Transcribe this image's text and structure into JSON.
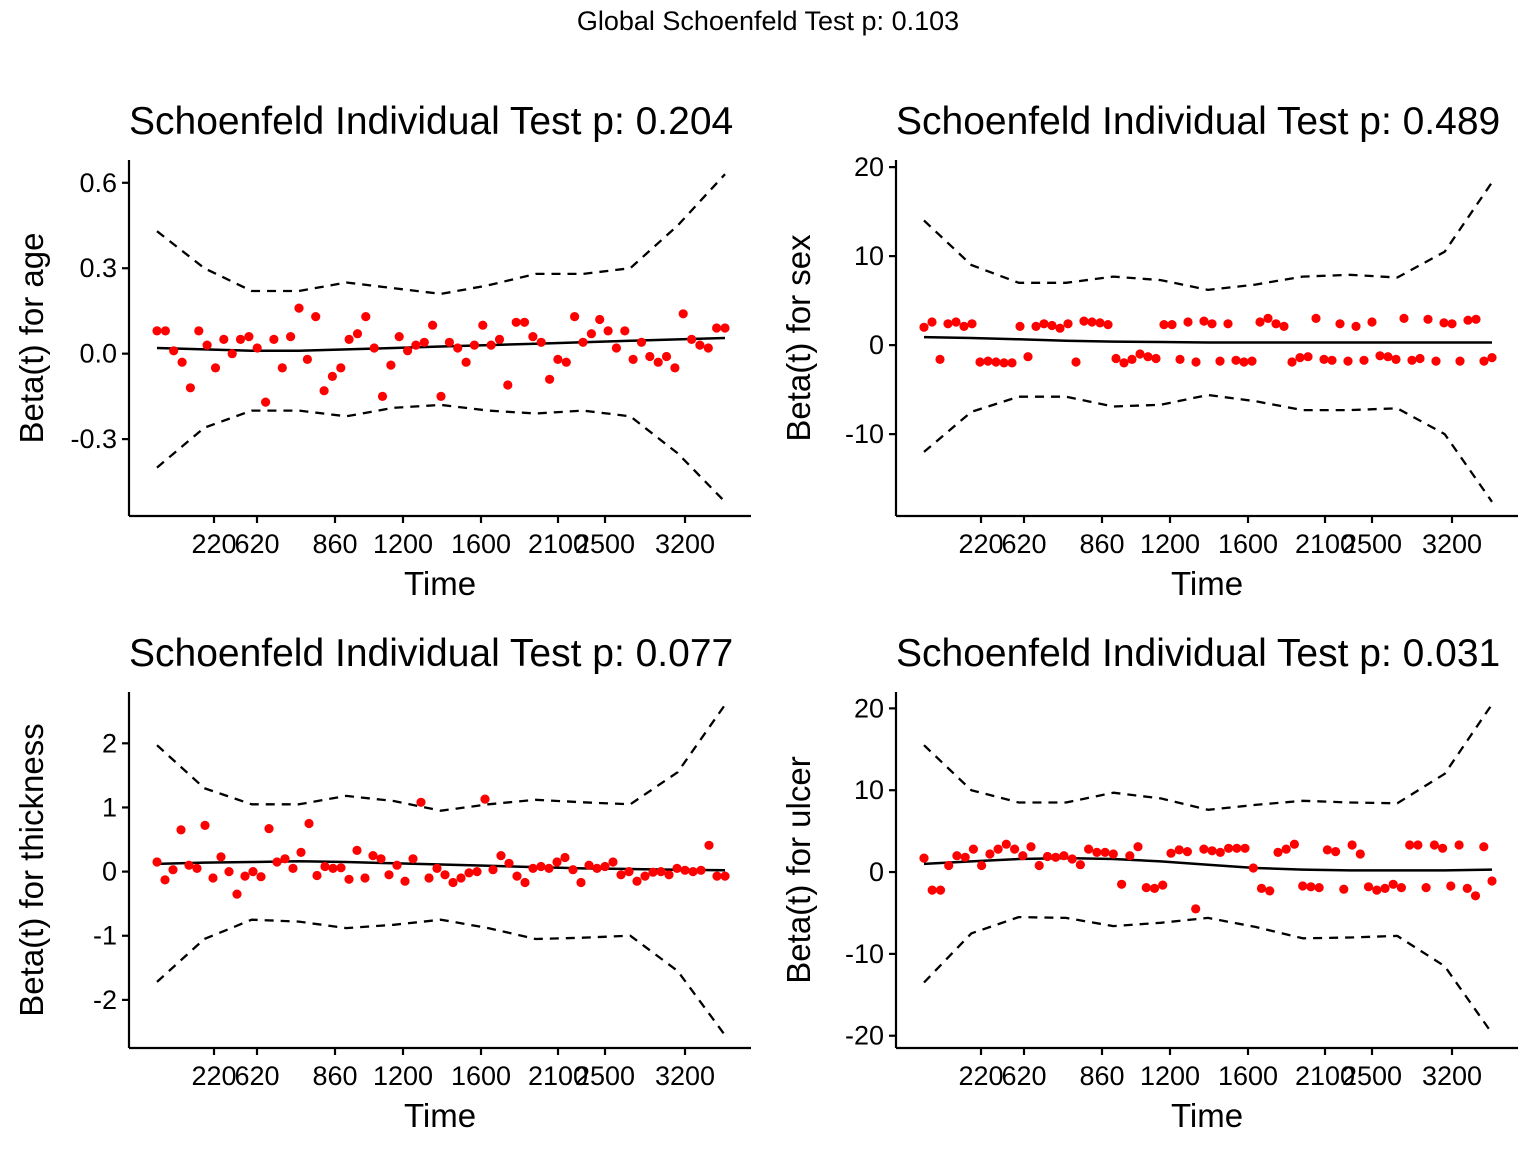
{
  "global_title": "Global Schoenfeld Test p: 0.103",
  "colors": {
    "points": "#ff0000",
    "smooth": "#000000",
    "band": "#000000"
  },
  "chart_data": [
    {
      "type": "scatter",
      "title": "Schoenfeld Individual Test p: 0.204",
      "xlabel": "Time",
      "ylabel": "Beta(t) for age",
      "x_tick_labels": [
        "220",
        "620",
        "860",
        "1200",
        "1600",
        "2100",
        "2500",
        "3200"
      ],
      "y_ticks": [
        -0.3,
        0.0,
        0.3,
        0.6
      ],
      "y_tick_labels": [
        "-0.3",
        "0.0",
        "0.3",
        "0.6"
      ],
      "ylim": [
        -0.57,
        0.68
      ],
      "points": [
        0.08,
        0.08,
        0.01,
        -0.03,
        -0.12,
        0.08,
        0.03,
        -0.05,
        0.05,
        0.0,
        0.05,
        0.06,
        0.02,
        -0.17,
        0.05,
        -0.05,
        0.06,
        0.16,
        -0.02,
        0.13,
        -0.13,
        -0.08,
        -0.05,
        0.05,
        0.07,
        0.13,
        0.02,
        -0.15,
        -0.04,
        0.06,
        0.01,
        0.03,
        0.04,
        0.1,
        -0.15,
        0.04,
        0.02,
        -0.03,
        0.03,
        0.1,
        0.03,
        0.05,
        -0.11,
        0.11,
        0.11,
        0.06,
        0.04,
        -0.09,
        -0.02,
        -0.03,
        0.13,
        0.04,
        0.07,
        0.12,
        0.08,
        0.02,
        0.08,
        -0.02,
        0.04,
        -0.01,
        -0.03,
        -0.01,
        -0.05,
        0.14,
        0.05,
        0.03,
        0.02,
        0.09,
        0.09
      ],
      "smooth": [
        0.02,
        0.015,
        0.01,
        0.01,
        0.015,
        0.02,
        0.025,
        0.03,
        0.035,
        0.04,
        0.045,
        0.05,
        0.055
      ],
      "upper": [
        0.43,
        0.3,
        0.22,
        0.22,
        0.25,
        0.23,
        0.21,
        0.24,
        0.28,
        0.28,
        0.3,
        0.45,
        0.63
      ],
      "lower": [
        -0.4,
        -0.26,
        -0.2,
        -0.2,
        -0.22,
        -0.19,
        -0.18,
        -0.2,
        -0.21,
        -0.2,
        -0.22,
        -0.35,
        -0.52
      ]
    },
    {
      "type": "scatter",
      "title": "Schoenfeld Individual Test p: 0.489",
      "xlabel": "Time",
      "ylabel": "Beta(t) for sex",
      "x_tick_labels": [
        "220",
        "620",
        "860",
        "1200",
        "1600",
        "2100",
        "2500",
        "3200"
      ],
      "y_ticks": [
        -10,
        0,
        10,
        20
      ],
      "y_tick_labels": [
        "-10",
        "0",
        "10",
        "20"
      ],
      "ylim": [
        -19.2,
        20.8
      ],
      "points": [
        2.0,
        2.6,
        -1.6,
        2.4,
        2.6,
        2.1,
        2.4,
        -1.9,
        -1.8,
        -1.9,
        -2.0,
        -2.0,
        2.1,
        -1.3,
        2.1,
        2.4,
        2.2,
        1.9,
        2.4,
        -1.9,
        2.7,
        2.6,
        2.5,
        2.3,
        -1.5,
        -2.0,
        -1.6,
        -1.0,
        -1.3,
        -1.5,
        2.3,
        2.3,
        -1.6,
        2.6,
        -1.9,
        2.7,
        2.4,
        -1.8,
        2.4,
        -1.7,
        -1.9,
        -1.8,
        2.6,
        3.0,
        2.4,
        2.1,
        -1.9,
        -1.4,
        -1.3,
        3.0,
        -1.6,
        -1.7,
        2.4,
        -1.8,
        2.1,
        -1.7,
        2.6,
        -1.2,
        -1.3,
        -1.6,
        3.0,
        -1.7,
        -1.5,
        2.9,
        -1.8,
        2.5,
        2.4,
        -1.8,
        2.8,
        2.9,
        -1.8,
        -1.4
      ],
      "smooth": [
        0.9,
        0.8,
        0.65,
        0.5,
        0.4,
        0.35,
        0.3,
        0.3,
        0.3,
        0.3,
        0.3,
        0.3,
        0.3
      ],
      "upper": [
        14.0,
        9.0,
        7.0,
        7.0,
        7.7,
        7.3,
        6.2,
        6.8,
        7.7,
        7.9,
        7.6,
        10.5,
        18.3
      ],
      "lower": [
        -12.0,
        -7.5,
        -5.8,
        -5.8,
        -6.9,
        -6.7,
        -5.6,
        -6.3,
        -7.3,
        -7.3,
        -7.1,
        -10.0,
        -17.6
      ]
    },
    {
      "type": "scatter",
      "title": "Schoenfeld Individual Test p: 0.077",
      "xlabel": "Time",
      "ylabel": "Beta(t) for thickness",
      "x_tick_labels": [
        "220",
        "620",
        "860",
        "1200",
        "1600",
        "2100",
        "2500",
        "3200"
      ],
      "y_ticks": [
        -2,
        -1,
        0,
        1,
        2
      ],
      "y_tick_labels": [
        "-2",
        "-1",
        "0",
        "1",
        "2"
      ],
      "ylim": [
        -2.75,
        2.8
      ],
      "points": [
        0.15,
        -0.13,
        0.03,
        0.65,
        0.1,
        0.05,
        0.72,
        -0.1,
        0.23,
        0.0,
        -0.35,
        -0.07,
        0.0,
        -0.08,
        0.67,
        0.15,
        0.2,
        0.05,
        0.3,
        0.75,
        -0.06,
        0.08,
        0.05,
        0.06,
        -0.12,
        0.33,
        -0.1,
        0.25,
        0.2,
        -0.05,
        0.1,
        -0.15,
        0.2,
        1.08,
        -0.1,
        0.05,
        -0.05,
        -0.17,
        -0.1,
        -0.02,
        0.0,
        1.13,
        0.03,
        0.25,
        0.13,
        -0.07,
        -0.17,
        0.05,
        0.08,
        0.05,
        0.15,
        0.22,
        0.03,
        -0.17,
        0.1,
        0.05,
        0.08,
        0.15,
        -0.05,
        0.0,
        -0.15,
        -0.07,
        -0.01,
        0.0,
        -0.05,
        0.05,
        0.02,
        0.0,
        0.02,
        0.41,
        -0.07,
        -0.07
      ],
      "smooth": [
        0.12,
        0.14,
        0.15,
        0.16,
        0.15,
        0.13,
        0.11,
        0.09,
        0.07,
        0.05,
        0.04,
        0.03,
        0.02
      ],
      "upper": [
        1.97,
        1.3,
        1.05,
        1.05,
        1.18,
        1.1,
        0.95,
        1.05,
        1.12,
        1.08,
        1.05,
        1.55,
        2.6
      ],
      "lower": [
        -1.72,
        -1.05,
        -0.75,
        -0.78,
        -0.88,
        -0.83,
        -0.75,
        -0.88,
        -1.05,
        -1.03,
        -1.0,
        -1.55,
        -2.55
      ]
    },
    {
      "type": "scatter",
      "title": "Schoenfeld Individual Test p: 0.031",
      "xlabel": "Time",
      "ylabel": "Beta(t) for ulcer",
      "x_tick_labels": [
        "220",
        "620",
        "860",
        "1200",
        "1600",
        "2100",
        "2500",
        "3200"
      ],
      "y_ticks": [
        -20,
        -10,
        0,
        10,
        20
      ],
      "y_tick_labels": [
        "-20",
        "-10",
        "0",
        "10",
        "20"
      ],
      "ylim": [
        -21.5,
        22.0
      ],
      "points": [
        1.7,
        -2.2,
        -2.2,
        0.8,
        2.0,
        1.8,
        2.8,
        0.8,
        2.2,
        2.8,
        3.4,
        2.8,
        2.0,
        3.1,
        0.8,
        1.9,
        1.8,
        2.0,
        1.6,
        0.9,
        2.8,
        2.4,
        2.4,
        2.2,
        -1.5,
        2.0,
        3.1,
        -1.9,
        -2.0,
        -1.6,
        2.3,
        2.7,
        2.5,
        -4.5,
        2.8,
        2.6,
        2.4,
        2.9,
        2.9,
        2.9,
        0.5,
        -2.0,
        -2.3,
        2.4,
        2.8,
        3.4,
        -1.7,
        -1.8,
        -1.9,
        2.7,
        2.5,
        -2.1,
        3.3,
        2.2,
        -1.8,
        -2.2,
        -2.0,
        -1.5,
        -1.9,
        3.3,
        3.3,
        -1.9,
        3.3,
        2.9,
        -1.7,
        3.3,
        -2.0,
        -2.9,
        3.1,
        -1.1
      ],
      "smooth": [
        1.0,
        1.3,
        1.6,
        1.7,
        1.6,
        1.3,
        0.9,
        0.5,
        0.3,
        0.2,
        0.2,
        0.2,
        0.3
      ],
      "upper": [
        15.5,
        10.0,
        8.5,
        8.5,
        9.7,
        9.0,
        7.6,
        8.2,
        8.7,
        8.5,
        8.4,
        12.0,
        20.5
      ],
      "lower": [
        -13.5,
        -7.5,
        -5.5,
        -5.6,
        -6.6,
        -6.2,
        -5.6,
        -6.7,
        -8.1,
        -8.0,
        -7.8,
        -11.5,
        -19.7
      ]
    }
  ]
}
